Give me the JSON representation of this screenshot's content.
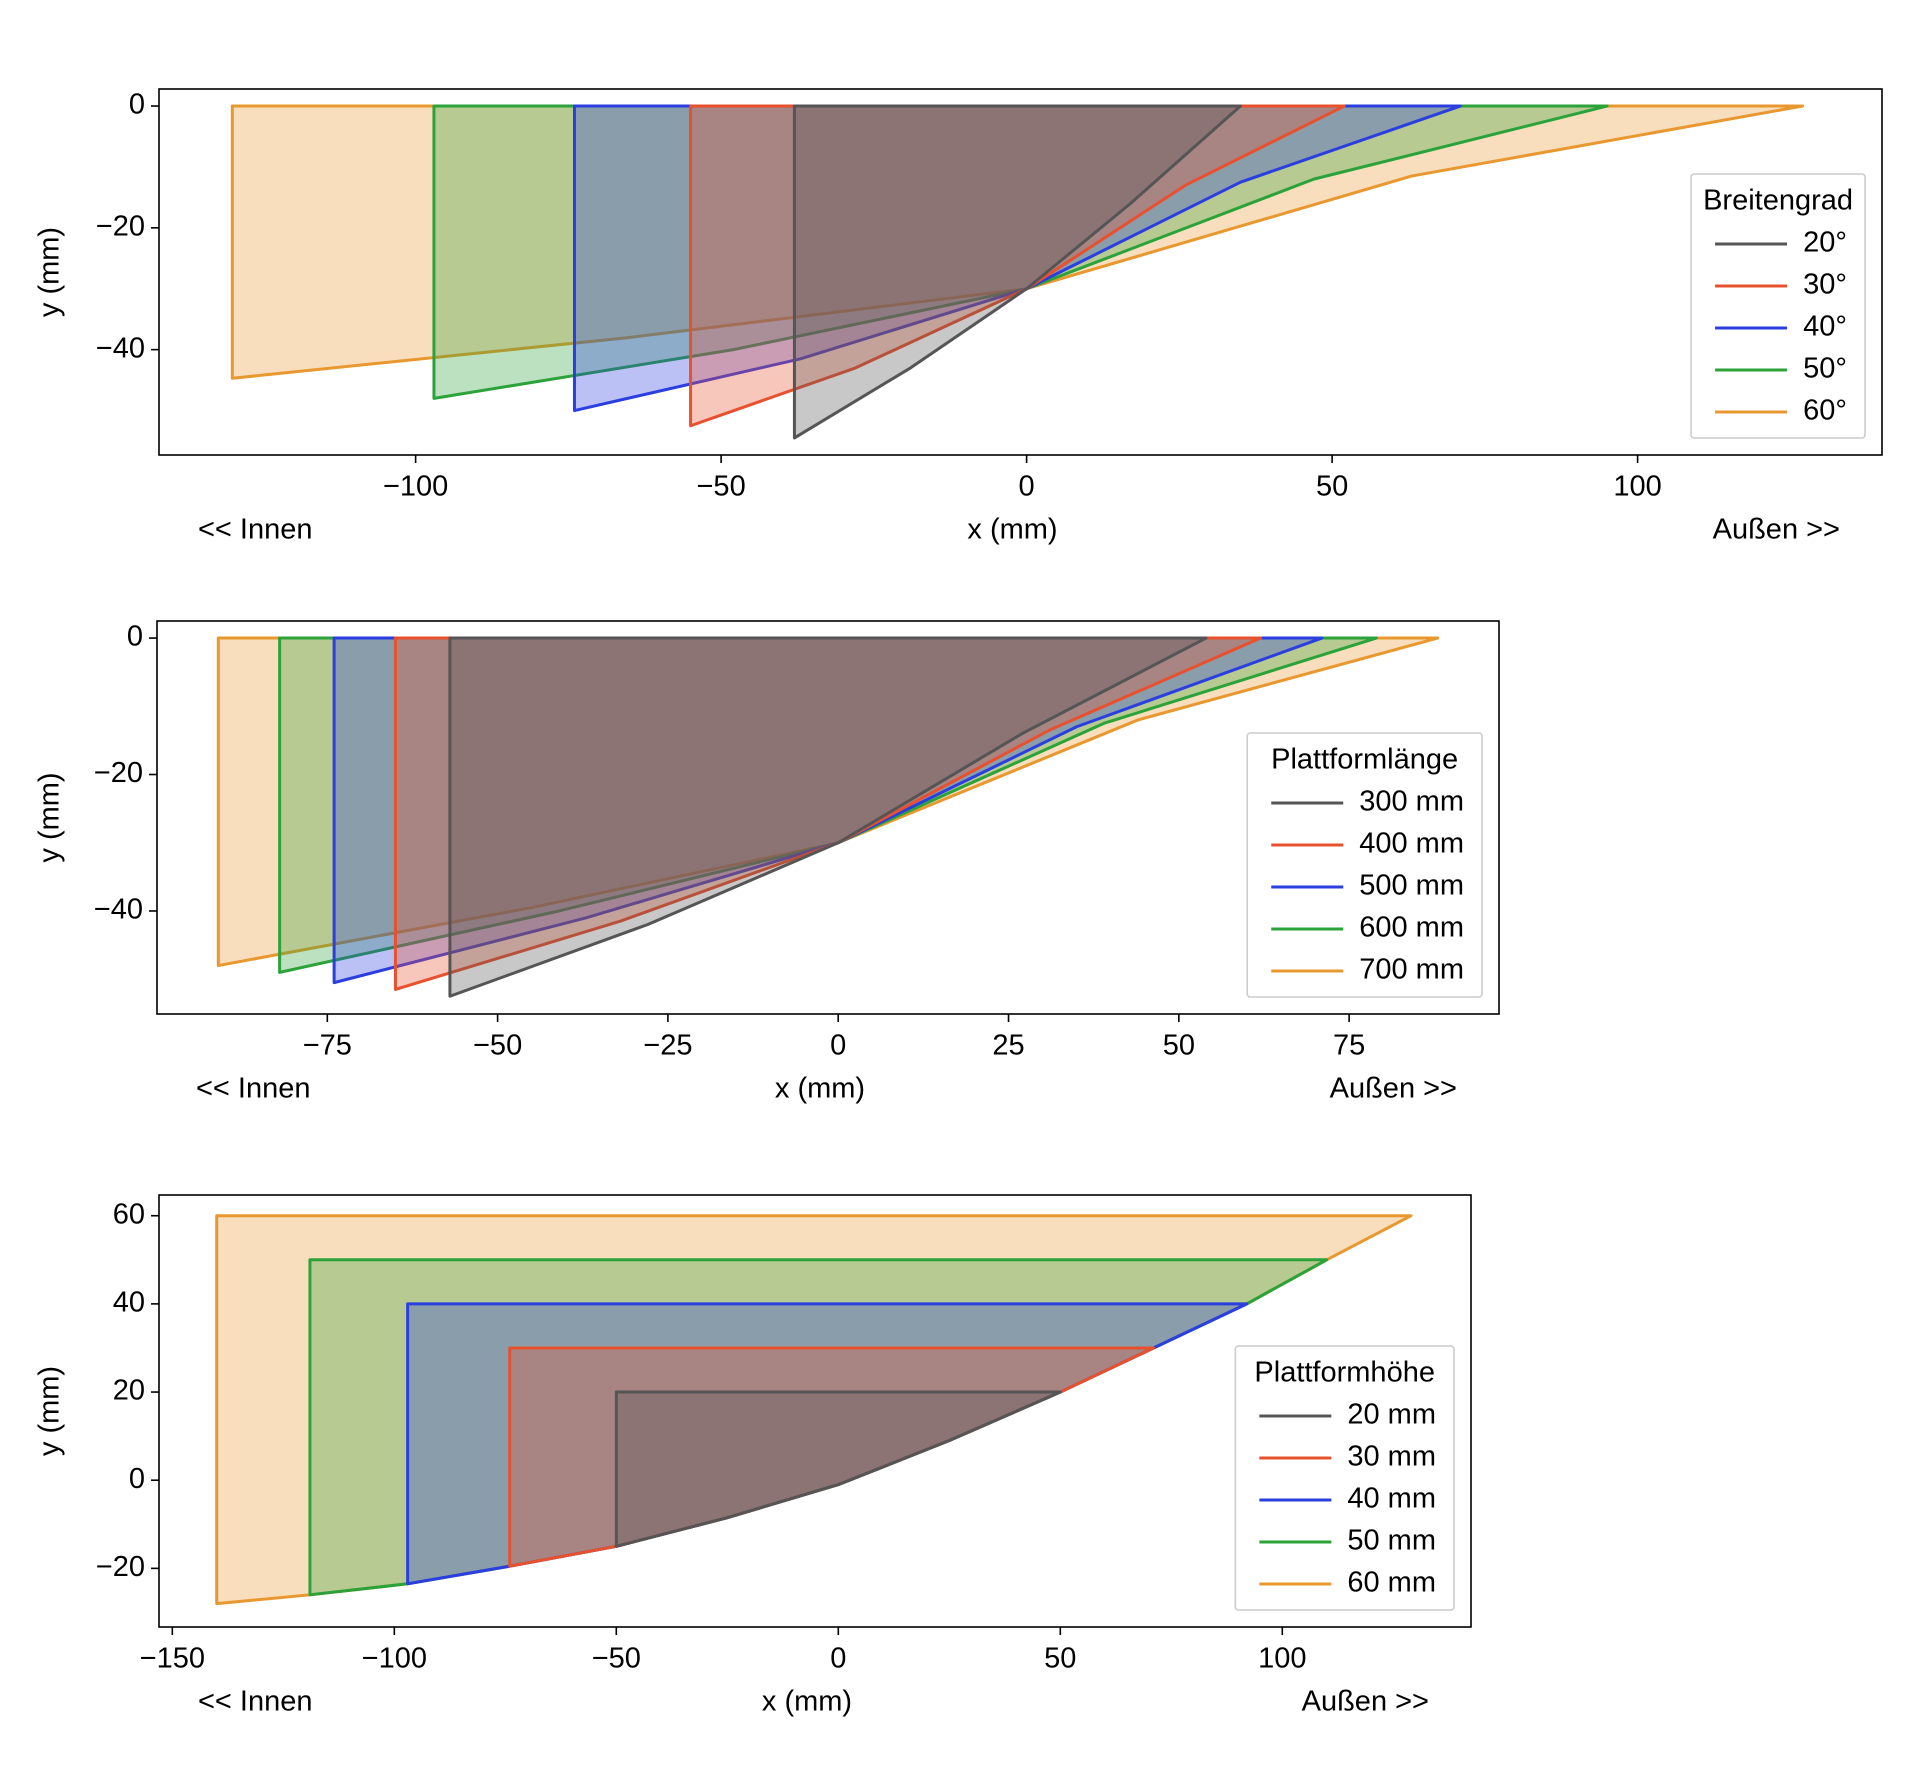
{
  "chart_data": [
    {
      "type": "area",
      "xlabel": "x (mm)",
      "ylabel": "y (mm)",
      "annotations": [
        "<< Innen",
        "Außen >>"
      ],
      "xlim": [
        -142,
        140
      ],
      "ylim": [
        -57.3,
        2.8
      ],
      "xticks": [
        {
          "value": -100,
          "label": "−100"
        },
        {
          "value": -50,
          "label": "−50"
        },
        0,
        50,
        100
      ],
      "yticks": [
        0,
        {
          "value": -20,
          "label": "−20"
        },
        {
          "value": -40,
          "label": "−40"
        }
      ],
      "legend": "lower right",
      "legend_title": "Breitengrad",
      "series": [
        {
          "name": "20°",
          "color": "#555555",
          "x": [
            -38,
            35,
            17,
            0,
            -19,
            -38
          ],
          "y": [
            0,
            0,
            -16,
            -30,
            -43,
            -54.5
          ]
        },
        {
          "name": "30°",
          "color": "#e8502e",
          "x": [
            -55,
            52,
            26,
            0,
            -28,
            -55
          ],
          "y": [
            0,
            0,
            -13,
            -30,
            -43,
            -52.5
          ]
        },
        {
          "name": "40°",
          "color": "#2b3fe0",
          "x": [
            -74,
            71,
            35,
            0,
            -37,
            -74
          ],
          "y": [
            0,
            0,
            -12.5,
            -30,
            -41.5,
            -50
          ]
        },
        {
          "name": "50°",
          "color": "#2ca23a",
          "x": [
            -97,
            95,
            47,
            0,
            -48,
            -97
          ],
          "y": [
            0,
            0,
            -12,
            -30,
            -40,
            -48
          ]
        },
        {
          "name": "60°",
          "color": "#e8982e",
          "x": [
            -130,
            127,
            63,
            0,
            -65,
            -130
          ],
          "y": [
            0,
            0,
            -11.5,
            -30,
            -38,
            -44.7
          ]
        }
      ]
    },
    {
      "type": "area",
      "xlabel": "x (mm)",
      "ylabel": "y (mm)",
      "annotations": [
        "<< Innen",
        "Außen >>"
      ],
      "xlim": [
        -100,
        97
      ],
      "ylim": [
        -55.1,
        2.5
      ],
      "xticks": [
        {
          "value": -75,
          "label": "−75"
        },
        {
          "value": -50,
          "label": "−50"
        },
        {
          "value": -25,
          "label": "−25"
        },
        0,
        25,
        50,
        75
      ],
      "yticks": [
        0,
        {
          "value": -20,
          "label": "−20"
        },
        {
          "value": -40,
          "label": "−40"
        }
      ],
      "legend": "lower right",
      "legend_title": "Plattformlänge",
      "series": [
        {
          "name": "300 mm",
          "color": "#555555",
          "x": [
            -57,
            54,
            27,
            0,
            -28,
            -57
          ],
          "y": [
            0,
            0,
            -14,
            -30,
            -42,
            -52.5
          ]
        },
        {
          "name": "400 mm",
          "color": "#e8502e",
          "x": [
            -65,
            62,
            31,
            0,
            -32,
            -65
          ],
          "y": [
            0,
            0,
            -13.5,
            -30,
            -41.5,
            -51.5
          ]
        },
        {
          "name": "500 mm",
          "color": "#2b3fe0",
          "x": [
            -74,
            71,
            35,
            0,
            -37,
            -74
          ],
          "y": [
            0,
            0,
            -13,
            -30,
            -41,
            -50.5
          ]
        },
        {
          "name": "600 mm",
          "color": "#2ca23a",
          "x": [
            -82,
            79,
            39,
            0,
            -41,
            -82
          ],
          "y": [
            0,
            0,
            -12.5,
            -30,
            -40,
            -49
          ]
        },
        {
          "name": "700 mm",
          "color": "#e8982e",
          "x": [
            -91,
            88,
            44,
            0,
            -45,
            -91
          ],
          "y": [
            0,
            0,
            -12,
            -30,
            -39.5,
            -48
          ]
        }
      ]
    },
    {
      "type": "area",
      "xlabel": "x (mm)",
      "ylabel": "y (mm)",
      "annotations": [
        "<< Innen",
        "Außen >>"
      ],
      "xlim": [
        -153,
        142.5
      ],
      "ylim": [
        -33.3,
        64.7
      ],
      "xticks": [
        {
          "value": -150,
          "label": "−150"
        },
        {
          "value": -100,
          "label": "−100"
        },
        {
          "value": -50,
          "label": "−50"
        },
        0,
        50,
        100
      ],
      "yticks": [
        {
          "value": -20,
          "label": "−20"
        },
        0,
        20,
        40,
        60
      ],
      "legend": "lower right",
      "legend_title": "Plattformhöhe",
      "series": [
        {
          "name": "20 mm",
          "color": "#555555",
          "x": [
            -50,
            50,
            25,
            0,
            -25,
            -50
          ],
          "y": [
            20,
            20,
            9,
            -1,
            -8.5,
            -15
          ]
        },
        {
          "name": "30 mm",
          "color": "#e8502e",
          "x": [
            -74,
            71,
            50,
            25,
            0,
            -25,
            -50,
            -74
          ],
          "y": [
            30,
            30,
            20,
            9,
            -1,
            -8.5,
            -15,
            -19.5
          ]
        },
        {
          "name": "40 mm",
          "color": "#2b3fe0",
          "x": [
            -97,
            92,
            71,
            50,
            25,
            0,
            -25,
            -50,
            -74,
            -97
          ],
          "y": [
            40,
            40,
            30,
            20,
            9,
            -1,
            -8.5,
            -15,
            -19.5,
            -23.5
          ]
        },
        {
          "name": "50 mm",
          "color": "#2ca23a",
          "x": [
            -119,
            110,
            92,
            71,
            50,
            25,
            0,
            -25,
            -50,
            -74,
            -97,
            -119
          ],
          "y": [
            50,
            50,
            40,
            30,
            20,
            9,
            -1,
            -8.5,
            -15,
            -19.5,
            -23.5,
            -26
          ]
        },
        {
          "name": "60 mm",
          "color": "#e8982e",
          "x": [
            -140,
            129,
            110,
            92,
            71,
            50,
            25,
            0,
            -25,
            -50,
            -74,
            -97,
            -119,
            -140
          ],
          "y": [
            60,
            60,
            50,
            40,
            30,
            20,
            9,
            -1,
            -8.5,
            -15,
            -19.5,
            -23.5,
            -26,
            -28
          ]
        }
      ]
    }
  ]
}
